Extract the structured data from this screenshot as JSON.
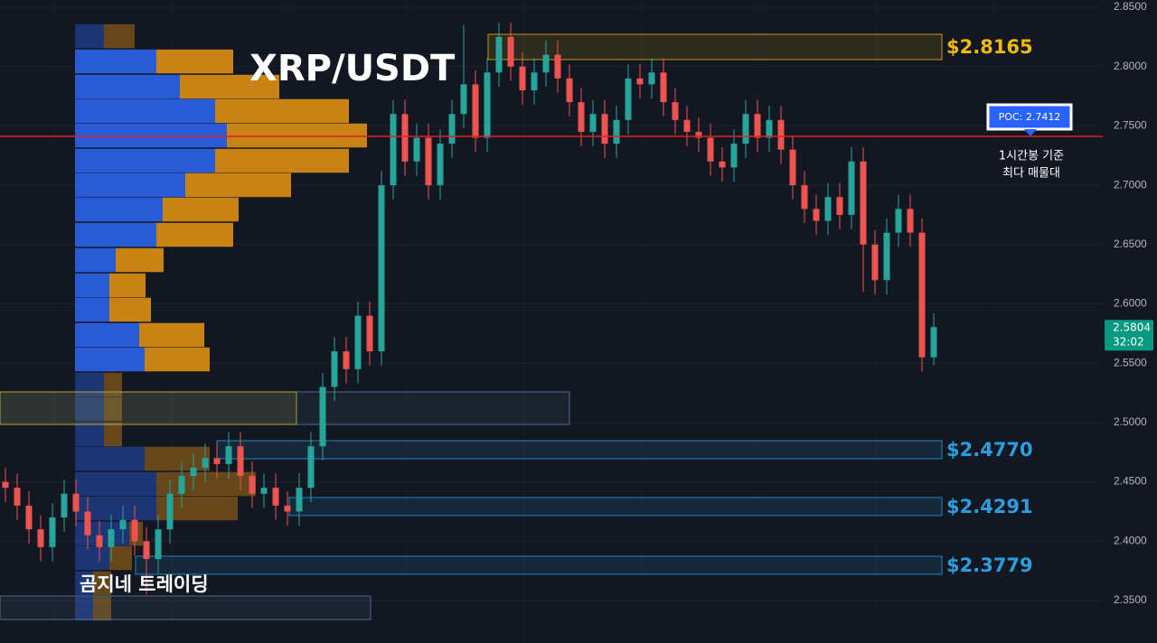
{
  "chart_data": {
    "type": "candlestick",
    "title": "XRP/USDT",
    "brand": "곰지네 트레이딩",
    "up_color": "#26a69a",
    "down_color": "#ef5350",
    "grid": true,
    "ylim": [
      2.3142,
      2.8561
    ],
    "yticks": [
      {
        "value": 2.35,
        "label": "2.3500"
      },
      {
        "value": 2.4,
        "label": "2.4000"
      },
      {
        "value": 2.45,
        "label": "2.4500"
      },
      {
        "value": 2.5,
        "label": "2.5000"
      },
      {
        "value": 2.55,
        "label": "2.5500"
      },
      {
        "value": 2.6,
        "label": "2.6000"
      },
      {
        "value": 2.65,
        "label": "2.6500"
      },
      {
        "value": 2.7,
        "label": "2.7000"
      },
      {
        "value": 2.75,
        "label": "2.7500"
      },
      {
        "value": 2.8,
        "label": "2.8000"
      },
      {
        "value": 2.85,
        "label": "2.8500"
      }
    ],
    "open": [
      2.45,
      2.445,
      2.43,
      2.41,
      2.395,
      2.42,
      2.44,
      2.425,
      2.405,
      2.395,
      2.41,
      2.418,
      2.4,
      2.385,
      2.41,
      2.44,
      2.455,
      2.462,
      2.47,
      2.465,
      2.48,
      2.455,
      2.44,
      2.445,
      2.43,
      2.425,
      2.445,
      2.48,
      2.53,
      2.56,
      2.545,
      2.59,
      2.56,
      2.7,
      2.76,
      2.72,
      2.74,
      2.7,
      2.735,
      2.76,
      2.785,
      2.74,
      2.795,
      2.825,
      2.8,
      2.78,
      2.795,
      2.81,
      2.79,
      2.77,
      2.745,
      2.76,
      2.735,
      2.755,
      2.79,
      2.785,
      2.795,
      2.77,
      2.755,
      2.745,
      2.74,
      2.72,
      2.715,
      2.735,
      2.76,
      2.74,
      2.755,
      2.73,
      2.7,
      2.68,
      2.67,
      2.69,
      2.675,
      2.72,
      2.65,
      2.62,
      2.66,
      2.68,
      2.66,
      2.555
    ],
    "high": [
      2.462,
      2.457,
      2.442,
      2.422,
      2.432,
      2.452,
      2.452,
      2.437,
      2.417,
      2.422,
      2.43,
      2.43,
      2.412,
      2.422,
      2.452,
      2.467,
      2.474,
      2.482,
      2.482,
      2.492,
      2.492,
      2.467,
      2.457,
      2.457,
      2.442,
      2.457,
      2.492,
      2.542,
      2.572,
      2.572,
      2.602,
      2.602,
      2.712,
      2.772,
      2.772,
      2.752,
      2.752,
      2.747,
      2.772,
      2.835,
      2.797,
      2.807,
      2.837,
      2.837,
      2.812,
      2.807,
      2.822,
      2.822,
      2.802,
      2.782,
      2.772,
      2.772,
      2.767,
      2.802,
      2.802,
      2.807,
      2.807,
      2.782,
      2.767,
      2.757,
      2.752,
      2.732,
      2.747,
      2.772,
      2.772,
      2.767,
      2.767,
      2.742,
      2.712,
      2.692,
      2.702,
      2.702,
      2.732,
      2.732,
      2.662,
      2.672,
      2.692,
      2.692,
      2.672,
      2.592
    ],
    "low": [
      2.433,
      2.418,
      2.398,
      2.383,
      2.383,
      2.408,
      2.413,
      2.393,
      2.383,
      2.383,
      2.398,
      2.388,
      2.355,
      2.373,
      2.398,
      2.428,
      2.443,
      2.45,
      2.453,
      2.453,
      2.443,
      2.428,
      2.428,
      2.418,
      2.413,
      2.413,
      2.433,
      2.468,
      2.518,
      2.533,
      2.533,
      2.548,
      2.548,
      2.688,
      2.708,
      2.708,
      2.688,
      2.688,
      2.723,
      2.748,
      2.728,
      2.728,
      2.783,
      2.788,
      2.768,
      2.768,
      2.783,
      2.778,
      2.758,
      2.733,
      2.733,
      2.723,
      2.723,
      2.743,
      2.773,
      2.773,
      2.758,
      2.743,
      2.733,
      2.728,
      2.708,
      2.703,
      2.703,
      2.723,
      2.728,
      2.728,
      2.718,
      2.688,
      2.668,
      2.658,
      2.658,
      2.663,
      2.663,
      2.61,
      2.608,
      2.608,
      2.648,
      2.648,
      2.543,
      2.548
    ],
    "close": [
      2.445,
      2.43,
      2.41,
      2.395,
      2.42,
      2.44,
      2.425,
      2.405,
      2.395,
      2.41,
      2.418,
      2.4,
      2.385,
      2.41,
      2.44,
      2.455,
      2.462,
      2.47,
      2.465,
      2.48,
      2.455,
      2.44,
      2.445,
      2.43,
      2.425,
      2.445,
      2.48,
      2.53,
      2.56,
      2.545,
      2.59,
      2.56,
      2.7,
      2.76,
      2.72,
      2.74,
      2.7,
      2.735,
      2.76,
      2.785,
      2.74,
      2.795,
      2.825,
      2.8,
      2.78,
      2.795,
      2.81,
      2.79,
      2.77,
      2.745,
      2.76,
      2.735,
      2.755,
      2.79,
      2.785,
      2.795,
      2.77,
      2.755,
      2.745,
      2.74,
      2.72,
      2.715,
      2.735,
      2.76,
      2.74,
      2.755,
      2.73,
      2.7,
      2.68,
      2.67,
      2.69,
      2.675,
      2.72,
      2.65,
      2.62,
      2.66,
      2.68,
      2.66,
      2.555,
      2.5804
    ],
    "last_price": 2.5804,
    "countdown": "32:02",
    "volume_profile": {
      "buy_color": "#2a5bd7",
      "sell_color": "#c98315",
      "prices": [
        2.8256,
        2.8043,
        2.783,
        2.7625,
        2.7419,
        2.7206,
        2.7001,
        2.6795,
        2.6582,
        2.6369,
        2.6156,
        2.5951,
        2.5738,
        2.5532,
        2.5319,
        2.5113,
        2.49,
        2.4695,
        2.4482,
        2.4276,
        2.4063,
        2.3858,
        2.3645,
        2.3432
      ],
      "buy": [
        32,
        90,
        116,
        155,
        168,
        155,
        122,
        97,
        90,
        45,
        38,
        38,
        71,
        77,
        32,
        32,
        32,
        77,
        90,
        90,
        60,
        38,
        20,
        20
      ],
      "sell": [
        34,
        85,
        110,
        148,
        155,
        148,
        117,
        84,
        85,
        53,
        40,
        46,
        72,
        72,
        20,
        20,
        20,
        72,
        110,
        90,
        15,
        25,
        20,
        20
      ]
    },
    "poc": {
      "value": 2.7412,
      "label": "POC: 2.7412",
      "color": "#e02020"
    },
    "poc_note": [
      "1시간봉 기준",
      "최다 매물대"
    ],
    "zones": [
      {
        "top": 2.8272,
        "bottom": 2.8059,
        "label": "$2.8165",
        "color": "#f0b90b"
      },
      {
        "top": 2.4847,
        "bottom": 2.4695,
        "label": "$2.4770",
        "color": "#2a9fe0"
      },
      {
        "top": 2.4368,
        "bottom": 2.4216,
        "label": "$2.4291",
        "color": "#2a9fe0"
      },
      {
        "top": 2.3873,
        "bottom": 2.3721,
        "label": "$2.3779",
        "color": "#2a9fe0"
      },
      {
        "top": 2.5258,
        "bottom": 2.4984,
        "color": "#5a7ea8"
      },
      {
        "top": 2.5258,
        "bottom": 2.4984,
        "color": "#c8b030"
      },
      {
        "top": 2.3538,
        "bottom": 2.334,
        "color": "#5a7ea8"
      }
    ]
  }
}
